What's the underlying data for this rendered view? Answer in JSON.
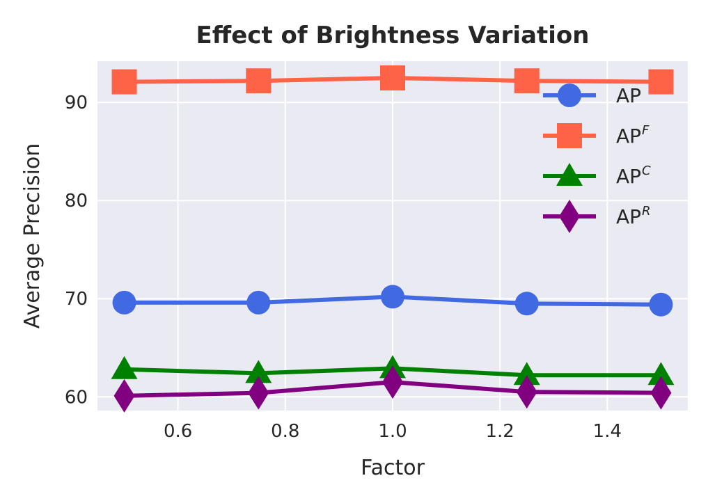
{
  "chart_data": {
    "type": "line",
    "title": "Effect of Brightness Variation",
    "xlabel": "Factor",
    "ylabel": "Average Precision",
    "x": [
      0.5,
      0.75,
      1.0,
      1.25,
      1.5
    ],
    "xlim": [
      0.45,
      1.55
    ],
    "ylim": [
      58.6,
      94.2
    ],
    "xticks": [
      0.6,
      0.8,
      1.0,
      1.2,
      1.4
    ],
    "xtick_labels": [
      "0.6",
      "0.8",
      "1.0",
      "1.2",
      "1.4"
    ],
    "yticks": [
      60,
      70,
      80,
      90
    ],
    "ytick_labels": [
      "60",
      "70",
      "80",
      "90"
    ],
    "grid": true,
    "legend_position": "upper-right",
    "series": [
      {
        "name": "AP",
        "sup": "",
        "color": "#4169E1",
        "marker": "circle",
        "values": [
          69.6,
          69.6,
          70.2,
          69.5,
          69.4
        ]
      },
      {
        "name": "AP",
        "sup": "F",
        "color": "#FF6347",
        "marker": "square",
        "values": [
          92.1,
          92.2,
          92.5,
          92.2,
          92.1
        ]
      },
      {
        "name": "AP",
        "sup": "C",
        "color": "#008000",
        "marker": "triangle",
        "values": [
          62.8,
          62.4,
          62.9,
          62.2,
          62.2
        ]
      },
      {
        "name": "AP",
        "sup": "R",
        "color": "#800080",
        "marker": "diamond",
        "values": [
          60.1,
          60.4,
          61.5,
          60.5,
          60.4
        ]
      }
    ]
  }
}
